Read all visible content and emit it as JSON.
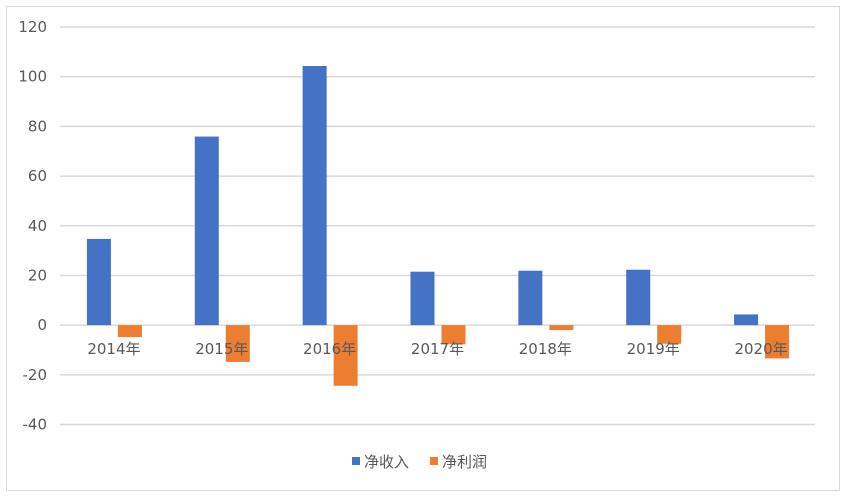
{
  "chart_data": {
    "type": "bar",
    "title": "",
    "categories": [
      "2014年",
      "2015年",
      "2016年",
      "2017年",
      "2018年",
      "2019年",
      "2020年"
    ],
    "series": [
      {
        "name": "净收入",
        "color": "#4472C4",
        "values": [
          34.7,
          75.9,
          104.3,
          21.5,
          21.9,
          22.3,
          4.3
        ]
      },
      {
        "name": "净利润",
        "color": "#ED7D31",
        "values": [
          -4.8,
          -14.8,
          -24.4,
          -7.7,
          -2.0,
          -7.5,
          -13.4
        ]
      }
    ],
    "ylim": [
      -40,
      120
    ],
    "yticks": [
      -40,
      -20,
      0,
      20,
      40,
      60,
      80,
      100,
      120
    ],
    "grid": true,
    "legend": "bottom"
  }
}
